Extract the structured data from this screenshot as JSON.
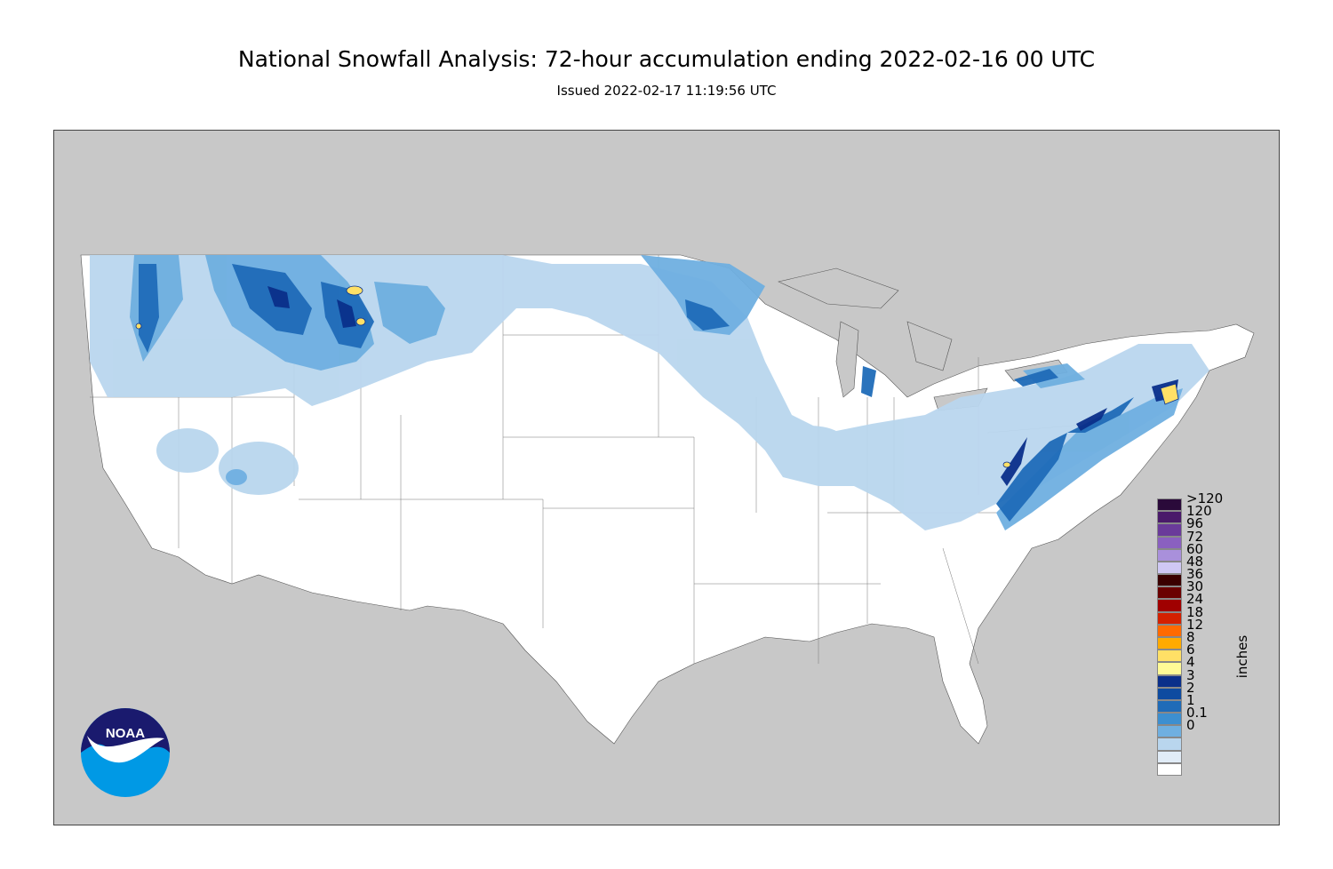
{
  "title": "National Snowfall Analysis: 72-hour accumulation ending 2022-02-16 00 UTC",
  "subtitle": "Issued 2022-02-17 11:19:56 UTC",
  "legend": {
    "units": "inches",
    "levels": [
      {
        "label": ">120",
        "color": "#2a0a3a"
      },
      {
        "label": "120",
        "color": "#4a1a6a"
      },
      {
        "label": "96",
        "color": "#6a3a9a"
      },
      {
        "label": "72",
        "color": "#8a60c0"
      },
      {
        "label": "60",
        "color": "#a990db"
      },
      {
        "label": "48",
        "color": "#cfc8f4"
      },
      {
        "label": "36",
        "color": "#3a0000"
      },
      {
        "label": "30",
        "color": "#6a0000"
      },
      {
        "label": "24",
        "color": "#a00000"
      },
      {
        "label": "18",
        "color": "#d42000"
      },
      {
        "label": "12",
        "color": "#ff6a00"
      },
      {
        "label": "8",
        "color": "#ffaa00"
      },
      {
        "label": "6",
        "color": "#ffe066"
      },
      {
        "label": "4",
        "color": "#fffa96"
      },
      {
        "label": "3",
        "color": "#0a2f8a"
      },
      {
        "label": "2",
        "color": "#0e4ba0"
      },
      {
        "label": "1",
        "color": "#1f6bb8"
      },
      {
        "label": "0.1",
        "color": "#3d8fd0"
      },
      {
        "label": "0",
        "color": "#6fafe0"
      },
      {
        "label": "",
        "color": "#b9d6ee"
      },
      {
        "label": "",
        "color": "#e1ecf7"
      },
      {
        "label": "",
        "color": "#ffffff"
      }
    ]
  },
  "logo_text": "NOAA",
  "colors": {
    "land_outside": "#c8c8c8",
    "conus": "#ffffff",
    "snow_light": "#b9d6ee",
    "snow_med": "#6fafe0",
    "snow_heavy": "#1f6bb8",
    "snow_vheavy": "#0a2f8a",
    "snow_extreme": "#ffe066"
  }
}
